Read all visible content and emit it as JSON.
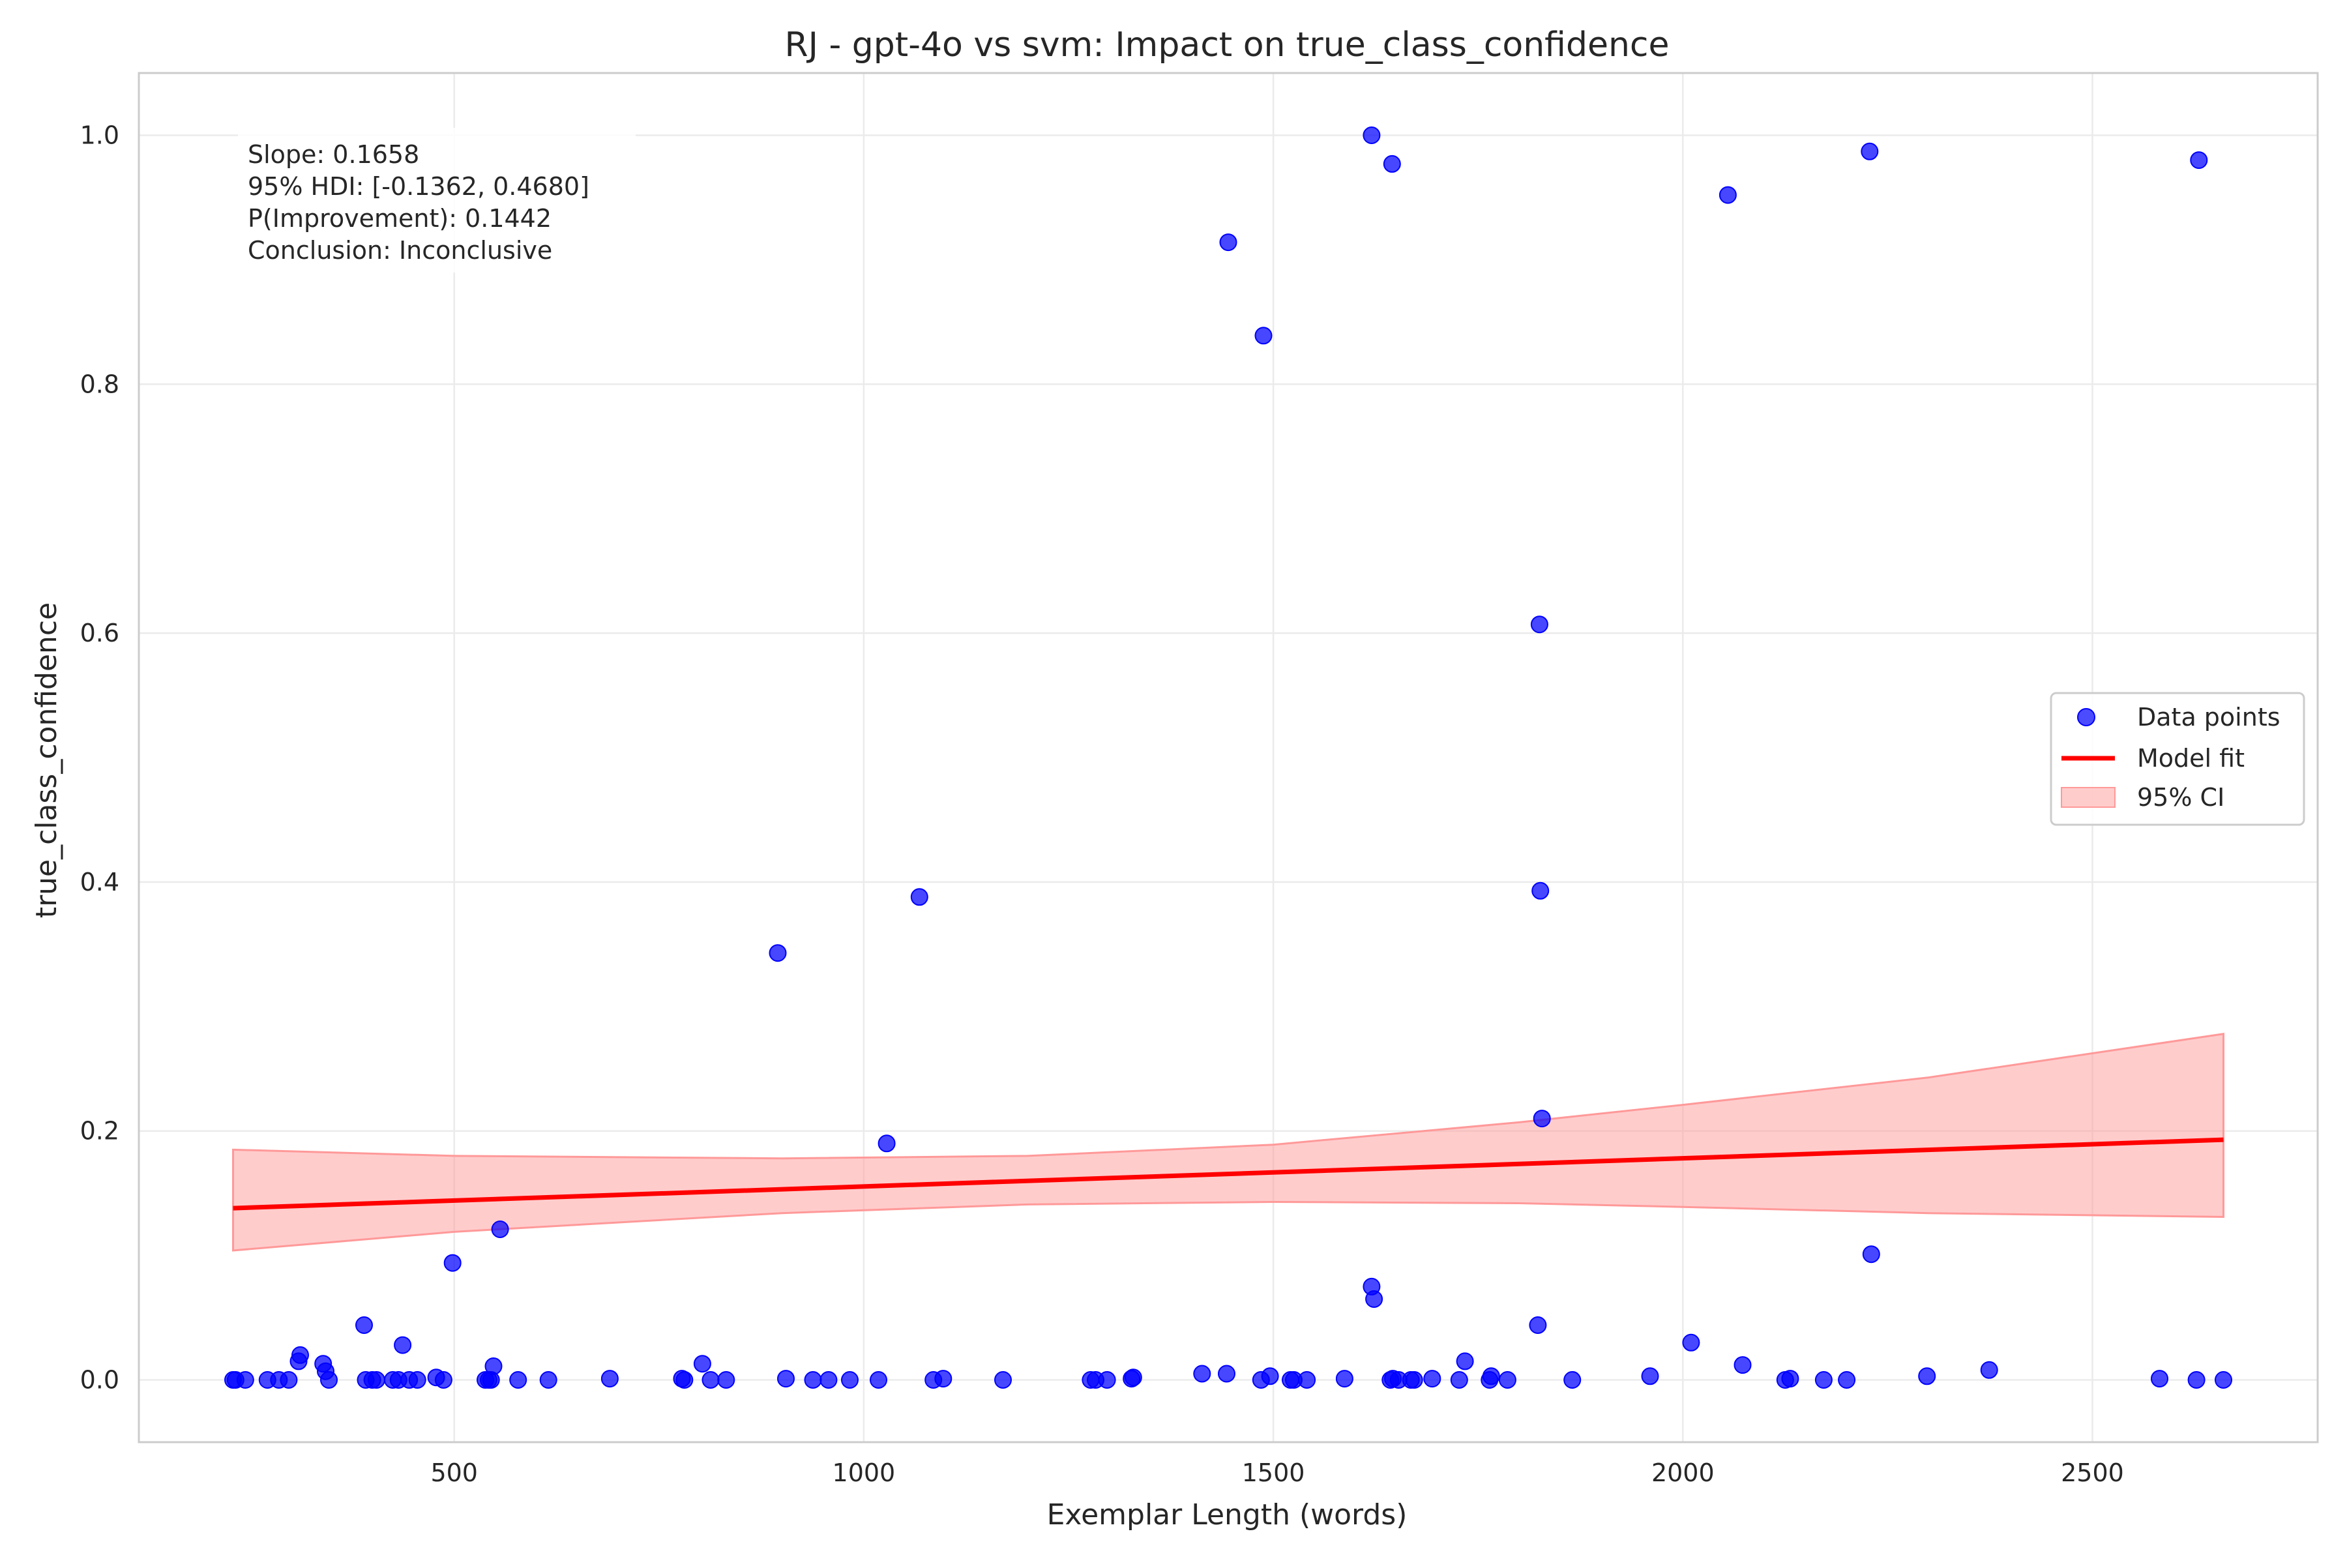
{
  "chart_data": {
    "type": "scatter",
    "title": "RJ - gpt-4o vs svm: Impact on true_class_confidence",
    "xlabel": "Exemplar Length (words)",
    "ylabel": "true_class_confidence",
    "xlim": [
      115,
      2775
    ],
    "ylim": [
      -0.05,
      1.05
    ],
    "xticks": [
      500,
      1000,
      1500,
      2000,
      2500
    ],
    "xtick_labels": [
      "500",
      "1000",
      "1500",
      "2000",
      "2500"
    ],
    "yticks": [
      0.0,
      0.2,
      0.4,
      0.6,
      0.8,
      1.0
    ],
    "ytick_labels": [
      "0.0",
      "0.2",
      "0.4",
      "0.6",
      "0.8",
      "1.0"
    ],
    "grid": true,
    "colors": {
      "points": "#0000ff",
      "fit_line": "#ff0000",
      "ci_fill": "#ff9999",
      "grid": "#ebebeb",
      "spine": "#cccccc",
      "text": "#262626"
    },
    "stats_box": {
      "lines": [
        "Slope: 0.1658",
        "95% HDI: [-0.1362, 0.4680]",
        "P(Improvement): 0.1442",
        "Conclusion: Inconclusive"
      ]
    },
    "legend": {
      "placement": "center-right",
      "entries": [
        "Data points",
        "Model fit",
        "95% CI"
      ]
    },
    "series": [
      {
        "name": "Data points",
        "kind": "scatter",
        "x": [
          230,
          233,
          245,
          272,
          286,
          298,
          310,
          312,
          340,
          343,
          347,
          390,
          392,
          400,
          405,
          425,
          432,
          437,
          445,
          455,
          478,
          487,
          498,
          538,
          542,
          545,
          548,
          556,
          578,
          615,
          690,
          778,
          781,
          803,
          813,
          832,
          895,
          905,
          938,
          957,
          983,
          1018,
          1028,
          1068,
          1085,
          1097,
          1170,
          1277,
          1283,
          1297,
          1327,
          1329,
          1413,
          1443,
          1445,
          1485,
          1488,
          1496,
          1521,
          1525,
          1541,
          1587,
          1620,
          1623,
          1643,
          1646,
          1653,
          1668,
          1672,
          1694,
          1727,
          1734,
          1764,
          1766,
          1786,
          1823,
          1825,
          1826,
          1828,
          1865,
          1960,
          2010,
          2055,
          2073,
          2125,
          2131,
          2172,
          2200,
          2228,
          2230,
          2298,
          2374,
          2582,
          2627,
          2630,
          2660
        ],
        "y": [
          0.0,
          0.0,
          0.0,
          0.0,
          0.0,
          0.0,
          0.015,
          0.02,
          0.013,
          0.007,
          0.0,
          0.044,
          0.0,
          0.0,
          0.0,
          0.0,
          0.0,
          0.028,
          0.0,
          0.0,
          0.002,
          0.0,
          0.094,
          0.0,
          0.0,
          0.0,
          0.011,
          0.121,
          0.0,
          0.0,
          0.001,
          0.001,
          0.0,
          0.013,
          0.0,
          0.0,
          0.343,
          0.001,
          0.0,
          0.0,
          0.0,
          0.0,
          0.19,
          0.388,
          0.0,
          0.001,
          0.0,
          0.0,
          0.0,
          0.0,
          0.001,
          0.002,
          0.005,
          0.005,
          0.914,
          0.0,
          0.839,
          0.003,
          0.0,
          0.0,
          0.0,
          0.001,
          0.075,
          0.065,
          0.0,
          0.001,
          0.0,
          0.0,
          0.0,
          0.001,
          0.0,
          0.015,
          0.0,
          0.003,
          0.0,
          0.044,
          0.607,
          0.393,
          0.21,
          0.0,
          0.003,
          0.03,
          0.952,
          0.012,
          0.0,
          0.001,
          0.0,
          0.0,
          0.987,
          0.101,
          0.003,
          0.008,
          0.001,
          0.0,
          0.98,
          0.0
        ]
      },
      {
        "name": "Data points",
        "kind": "scatter-extra",
        "x": [
          1620,
          1645
        ],
        "y": [
          1.0,
          0.977
        ]
      },
      {
        "name": "Model fit",
        "kind": "line",
        "x": [
          230,
          2660
        ],
        "y": [
          0.138,
          0.193
        ]
      },
      {
        "name": "95% CI",
        "kind": "band",
        "x": [
          230,
          500,
          900,
          1200,
          1500,
          1800,
          2000,
          2300,
          2660
        ],
        "lower": [
          0.104,
          0.119,
          0.134,
          0.141,
          0.143,
          0.142,
          0.139,
          0.134,
          0.131
        ],
        "upper": [
          0.185,
          0.18,
          0.178,
          0.18,
          0.189,
          0.207,
          0.221,
          0.243,
          0.278
        ]
      }
    ]
  }
}
